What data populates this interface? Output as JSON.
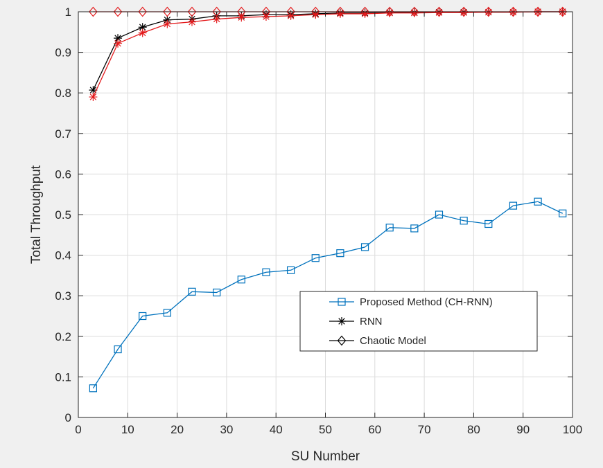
{
  "chart_data": {
    "type": "line",
    "title": "",
    "xlabel": "SU Number",
    "ylabel": "Total Throughput",
    "xlim": [
      0,
      100
    ],
    "ylim": [
      0,
      1
    ],
    "xticks": [
      "0",
      "10",
      "20",
      "30",
      "40",
      "50",
      "60",
      "70",
      "80",
      "90",
      "100"
    ],
    "yticks": [
      "0",
      "0.1",
      "0.2",
      "0.3",
      "0.4",
      "0.5",
      "0.6",
      "0.7",
      "0.8",
      "0.9",
      "1"
    ],
    "grid": true,
    "legend_position": "lower-right",
    "legend": [
      {
        "label": "Proposed Method (CH-RNN)",
        "color": "#0072bd",
        "marker": "square"
      },
      {
        "label": "RNN",
        "color": "#000000",
        "marker": "asterisk"
      },
      {
        "label": "Chaotic Model",
        "color": "#000000",
        "marker": "diamond"
      }
    ],
    "series": [
      {
        "name": "Proposed Method (CH-RNN)",
        "color": "#0072bd",
        "marker": "square",
        "x": [
          3,
          8,
          13,
          18,
          23,
          28,
          33,
          38,
          43,
          48,
          53,
          58,
          63,
          68,
          73,
          78,
          83,
          88,
          93,
          98
        ],
        "y": [
          0.072,
          0.168,
          0.25,
          0.258,
          0.31,
          0.308,
          0.34,
          0.358,
          0.363,
          0.393,
          0.405,
          0.42,
          0.468,
          0.466,
          0.5,
          0.485,
          0.477,
          0.522,
          0.532,
          0.503
        ]
      },
      {
        "name": "RNN",
        "color": "#000000",
        "marker": "asterisk",
        "x": [
          3,
          8,
          13,
          18,
          23,
          28,
          33,
          38,
          43,
          48,
          53,
          58,
          63,
          68,
          73,
          78,
          83,
          88,
          93,
          98
        ],
        "y": [
          0.807,
          0.935,
          0.962,
          0.98,
          0.982,
          0.99,
          0.99,
          0.993,
          0.993,
          0.995,
          0.997,
          0.997,
          0.998,
          0.998,
          0.999,
          0.999,
          0.999,
          0.999,
          1.0,
          1.0
        ]
      },
      {
        "name": "",
        "color": "#e41a1c",
        "marker": "asterisk",
        "x": [
          3,
          8,
          13,
          18,
          23,
          28,
          33,
          38,
          43,
          48,
          53,
          58,
          63,
          68,
          73,
          78,
          83,
          88,
          93,
          98
        ],
        "y": [
          0.79,
          0.922,
          0.948,
          0.97,
          0.975,
          0.982,
          0.986,
          0.988,
          0.99,
          0.993,
          0.995,
          0.995,
          0.997,
          0.997,
          0.998,
          0.998,
          0.999,
          0.999,
          1.0,
          1.0
        ]
      },
      {
        "name": "",
        "color": "#e41a1c",
        "marker": "diamond",
        "x": [
          3,
          8,
          13,
          18,
          23,
          28,
          33,
          38,
          43,
          48,
          53,
          58,
          63,
          68,
          73,
          78,
          83,
          88,
          93,
          98
        ],
        "y": [
          1,
          1,
          1,
          1,
          1,
          1,
          1,
          1,
          1,
          1,
          1,
          1,
          1,
          1,
          1,
          1,
          1,
          1,
          1,
          1
        ]
      }
    ]
  }
}
